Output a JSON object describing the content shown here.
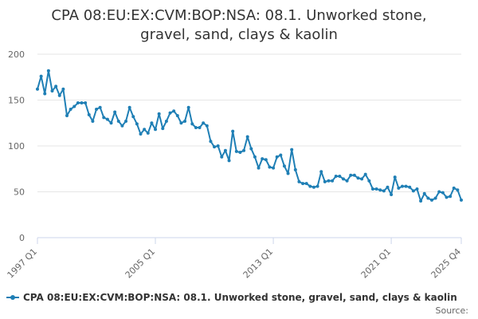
{
  "title_line1": "CPA 08:EU:EX:CVM:BOP:NSA: 08.1. Unworked stone,",
  "title_line2": "gravel, sand, clays & kaolin",
  "source_label": "Source:",
  "colors": {
    "series": "#1f7fb5",
    "grid": "#e6e6e6",
    "axis": "#ccd6eb"
  },
  "chart_data": {
    "type": "line",
    "title": "CPA 08:EU:EX:CVM:BOP:NSA: 08.1. Unworked stone, gravel, sand, clays & kaolin",
    "xlabel": "",
    "ylabel": "",
    "ylim": [
      0,
      200
    ],
    "yticks": [
      0,
      50,
      100,
      150,
      200
    ],
    "xlim": [
      "1997 Q1",
      "2025 Q4"
    ],
    "xticks": [
      "1997 Q1",
      "2005 Q1",
      "2013 Q1",
      "2021 Q1",
      "2025 Q4"
    ],
    "grid": true,
    "legend": "bottom-left",
    "series": [
      {
        "name": "CPA 08:EU:EX:CVM:BOP:NSA: 08.1. Unworked stone, gravel, sand, clays & kaolin",
        "start": "1997 Q1",
        "frequency": "quarterly",
        "values": [
          162,
          176,
          157,
          182,
          160,
          165,
          155,
          162,
          133,
          140,
          143,
          147,
          147,
          147,
          134,
          127,
          140,
          142,
          131,
          129,
          125,
          137,
          127,
          122,
          127,
          142,
          132,
          124,
          113,
          118,
          114,
          125,
          118,
          135,
          119,
          127,
          136,
          138,
          133,
          125,
          127,
          142,
          124,
          120,
          120,
          125,
          122,
          105,
          99,
          100,
          88,
          95,
          84,
          116,
          94,
          93,
          95,
          110,
          97,
          88,
          76,
          86,
          85,
          77,
          76,
          88,
          90,
          78,
          70,
          96,
          74,
          61,
          59,
          59,
          56,
          55,
          56,
          72,
          61,
          62,
          62,
          67,
          67,
          64,
          62,
          68,
          68,
          65,
          64,
          69,
          62,
          53,
          53,
          52,
          51,
          55,
          47,
          66,
          54,
          56,
          56,
          55,
          51,
          53,
          40,
          48,
          43,
          41,
          43,
          50,
          49,
          44,
          45,
          54,
          52,
          41
        ]
      }
    ]
  }
}
